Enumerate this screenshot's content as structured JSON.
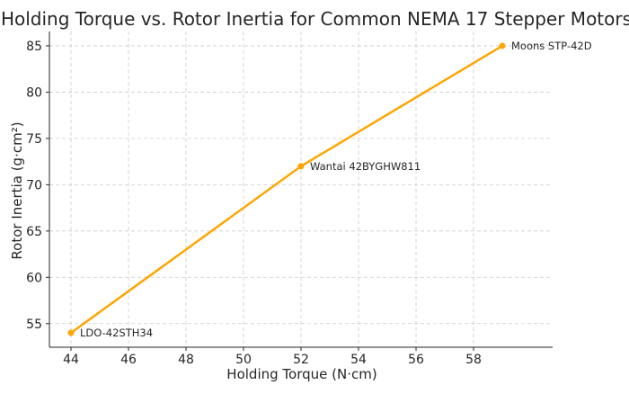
{
  "chart_data": {
    "type": "line",
    "title": "Holding Torque vs. Rotor Inertia for Common NEMA 17 Stepper Motors",
    "xlabel": "Holding Torque (N·cm)",
    "ylabel": "Rotor Inertia (g·cm²)",
    "xlim": [
      43.25,
      60.75
    ],
    "ylim": [
      52.45,
      86.55
    ],
    "xticks": [
      44,
      46,
      48,
      50,
      52,
      54,
      56,
      58
    ],
    "yticks": [
      55,
      60,
      65,
      70,
      75,
      80,
      85
    ],
    "grid": true,
    "series": [
      {
        "color": "#ffa500",
        "points": [
          {
            "x": 44,
            "y": 54,
            "label": "LDO-42STH34"
          },
          {
            "x": 52,
            "y": 72,
            "label": "Wantai 42BYGHW811"
          },
          {
            "x": 59,
            "y": 85,
            "label": "Moons STP-42D"
          }
        ]
      }
    ]
  }
}
